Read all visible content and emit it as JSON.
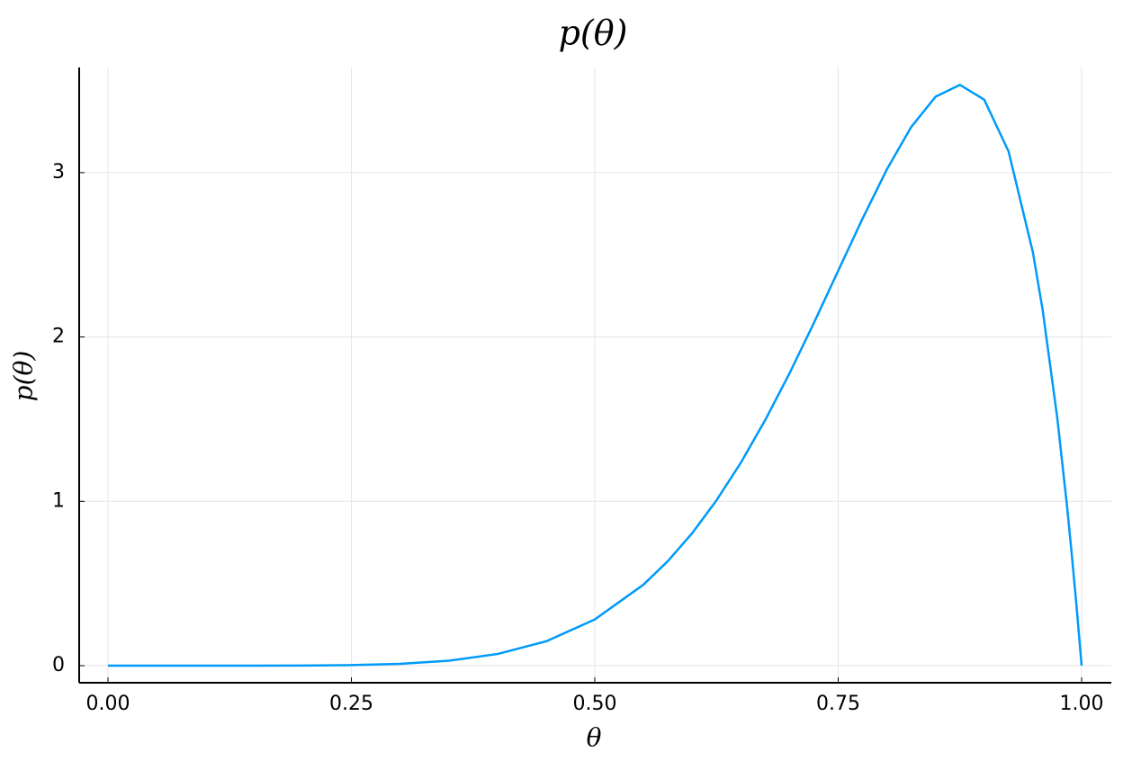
{
  "chart_data": {
    "type": "line",
    "title": "p(θ)",
    "xlabel": "θ",
    "ylabel": "p(θ)",
    "x": [
      0,
      0.05,
      0.1,
      0.15,
      0.2,
      0.25,
      0.3,
      0.35,
      0.4,
      0.45,
      0.5,
      0.55,
      0.575,
      0.6,
      0.625,
      0.65,
      0.675,
      0.7,
      0.725,
      0.75,
      0.775,
      0.8,
      0.825,
      0.85,
      0.875,
      0.9,
      0.925,
      0.95,
      0.96,
      0.975,
      0.985,
      0.99,
      0.995,
      1
    ],
    "series": [
      {
        "color": "#009af9",
        "values": [
          0,
          0,
          0,
          0.0001,
          0.0007,
          0.0033,
          0.011,
          0.0301,
          0.0708,
          0.148,
          0.281,
          0.493,
          0.636,
          0.806,
          1.006,
          1.235,
          1.494,
          1.779,
          2.085,
          2.403,
          2.72,
          3.02,
          3.278,
          3.462,
          3.534,
          3.444,
          3.129,
          2.514,
          2.164,
          1.508,
          0.972,
          0.671,
          0.348,
          0
        ]
      }
    ],
    "xlim": [
      -0.0296,
      1.0305
    ],
    "ylim": [
      -0.104,
      3.64
    ],
    "xticks": [
      {
        "value": 0,
        "label": "0.00"
      },
      {
        "value": 0.25,
        "label": "0.25"
      },
      {
        "value": 0.5,
        "label": "0.50"
      },
      {
        "value": 0.75,
        "label": "0.75"
      },
      {
        "value": 1,
        "label": "1.00"
      }
    ],
    "yticks": [
      0,
      1,
      2,
      3
    ],
    "grid": true
  }
}
